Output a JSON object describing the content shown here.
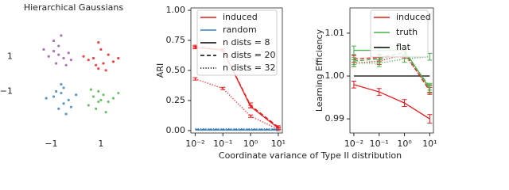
{
  "chart_data": [
    {
      "type": "scatter",
      "title": "Hierarchical Gaussians",
      "xlim": [
        -2.1,
        1.9
      ],
      "ylim": [
        -2.8,
        3.1
      ],
      "xticks": [
        {
          "value": -1,
          "label": "−1"
        },
        1
      ],
      "yticks": [
        1,
        {
          "value": -1,
          "label": "−1"
        }
      ],
      "series": [
        {
          "color": "#984ea3",
          "x": [
            -0.9,
            -0.5,
            -0.7,
            -1.1,
            -0.3,
            -0.8,
            -0.6,
            -1.3,
            -0.4,
            -0.9,
            -0.2,
            -0.7
          ],
          "y": [
            1.3,
            0.9,
            1.6,
            1.0,
            1.2,
            0.6,
            2.2,
            1.4,
            0.5,
            1.9,
            0.8,
            1.1
          ]
        },
        {
          "color": "#e41a1c",
          "x": [
            0.7,
            1.1,
            1.3,
            0.9,
            0.5,
            1.5,
            1.0,
            0.8,
            1.2,
            0.3,
            1.7,
            0.9
          ],
          "y": [
            0.9,
            0.6,
            1.1,
            0.3,
            0.8,
            0.7,
            1.4,
            0.5,
            0.2,
            1.0,
            0.9,
            1.8
          ]
        },
        {
          "color": "#377eb8",
          "x": [
            -0.6,
            -0.3,
            -0.9,
            -0.5,
            -0.2,
            -0.8,
            -0.4,
            -1.2,
            -0.6,
            0.0,
            -0.5,
            -0.7
          ],
          "y": [
            -1.1,
            -1.5,
            -1.3,
            -0.8,
            -1.9,
            -1.0,
            -2.3,
            -1.4,
            -0.6,
            -1.2,
            -1.7,
            -2.0
          ]
        },
        {
          "color": "#4daf4a",
          "x": [
            0.7,
            1.0,
            0.9,
            1.3,
            0.5,
            1.1,
            0.8,
            1.5,
            0.6,
            1.2,
            0.9,
            1.7
          ],
          "y": [
            -1.3,
            -1.5,
            -1.0,
            -1.6,
            -1.8,
            -1.2,
            -2.0,
            -1.4,
            -0.9,
            -2.2,
            -1.6,
            -1.1
          ]
        }
      ]
    },
    {
      "type": "line",
      "ylabel": "ARI",
      "xlabel": "Coordinate variance of Type II distribution",
      "log_x": true,
      "x": [
        0.01,
        0.1,
        1,
        10
      ],
      "xlim": [
        0.007,
        14
      ],
      "ylim": [
        -0.02,
        1.02
      ],
      "xticks": [
        {
          "value": 0.01,
          "label": "10⁻²"
        },
        {
          "value": 0.1,
          "label": "10⁻¹"
        },
        {
          "value": 1,
          "label": "10⁰"
        },
        {
          "value": 10,
          "label": "10¹"
        }
      ],
      "yticks": [
        {
          "value": 0,
          "label": "0.00"
        },
        {
          "value": 0.25,
          "label": "0.25"
        },
        {
          "value": 0.5,
          "label": "0.50"
        },
        {
          "value": 0.75,
          "label": "0.75"
        },
        {
          "value": 1,
          "label": "1.00"
        }
      ],
      "legend": [
        {
          "name": "induced",
          "color": "#e41a1c"
        },
        {
          "name": "random",
          "color": "#377eb8"
        },
        {
          "name": "n dists = 8",
          "dash": "solid"
        },
        {
          "name": "n dists = 20",
          "dash": "dashed"
        },
        {
          "name": "n dists = 32",
          "dash": "dotted"
        }
      ],
      "series": [
        {
          "color": "#e41a1c",
          "dash": "solid",
          "values": [
            0.69,
            0.67,
            0.2,
            0.02
          ],
          "errors": [
            0.01,
            0.01,
            0.01,
            0.01
          ]
        },
        {
          "color": "#e41a1c",
          "dash": "dashed",
          "values": [
            0.7,
            0.67,
            0.21,
            0.03
          ],
          "errors": [
            0.01,
            0.01,
            0.02,
            0.01
          ]
        },
        {
          "color": "#e41a1c",
          "dash": "dotted",
          "values": [
            0.43,
            0.35,
            0.12,
            0.01
          ],
          "errors": [
            0.01,
            0.01,
            0.01,
            0.01
          ]
        },
        {
          "color": "#377eb8",
          "dash": "solid",
          "values": [
            0.005,
            0.005,
            0.005,
            0.005
          ]
        },
        {
          "color": "#377eb8",
          "dash": "dashed",
          "values": [
            0.01,
            0.01,
            0.01,
            0.01
          ]
        },
        {
          "color": "#377eb8",
          "dash": "dotted",
          "values": [
            0.015,
            0.015,
            0.015,
            0.015
          ]
        }
      ]
    },
    {
      "type": "line",
      "ylabel": "Learning Efficiency",
      "log_x": true,
      "x": [
        0.01,
        0.1,
        1,
        10
      ],
      "xlim": [
        0.007,
        14
      ],
      "ylim": [
        0.9867,
        1.0159
      ],
      "xticks": [
        {
          "value": 0.01,
          "label": "10⁻²"
        },
        {
          "value": 0.1,
          "label": "10⁻¹"
        },
        {
          "value": 1,
          "label": "10⁰"
        },
        {
          "value": 10,
          "label": "10¹"
        }
      ],
      "yticks": [
        {
          "value": 0.99,
          "label": "0.99"
        },
        {
          "value": 1,
          "label": "1.00"
        },
        {
          "value": 1.01,
          "label": "1.01"
        }
      ],
      "legend": [
        {
          "name": "induced",
          "color": "#e41a1c"
        },
        {
          "name": "truth",
          "color": "#4daf4a"
        },
        {
          "name": "flat",
          "color": "#000000"
        }
      ],
      "series": [
        {
          "color": "#000000",
          "dash": "solid",
          "values": [
            1,
            1,
            1,
            1
          ]
        },
        {
          "color": "#e41a1c",
          "dash": "solid",
          "values": [
            0.998,
            0.9963,
            0.9937,
            0.99
          ],
          "errors": [
            0.0008,
            0.0008,
            0.0008,
            0.001
          ]
        },
        {
          "color": "#e41a1c",
          "dash": "dashed",
          "values": [
            1.004,
            1.0043,
            1.0055,
            0.9965
          ],
          "errors": [
            0.0008,
            0.0008,
            0.0008,
            0.0008
          ]
        },
        {
          "color": "#e41a1c",
          "dash": "dotted",
          "values": [
            1.003,
            1.0035,
            1.005,
            0.997
          ],
          "errors": [
            0.0008,
            0.0008,
            0.0008,
            0.0008
          ]
        },
        {
          "color": "#4daf4a",
          "dash": "solid",
          "values": [
            1.006,
            1.006,
            1.006,
            0.997
          ],
          "errors": [
            0.001,
            0.001,
            0.001,
            0.001
          ]
        },
        {
          "color": "#4daf4a",
          "dash": "dashed",
          "values": [
            1.0035,
            1.004,
            1.0055,
            0.9975
          ],
          "errors": [
            0.0008,
            0.0008,
            0.0008,
            0.0008
          ]
        },
        {
          "color": "#4daf4a",
          "dash": "dotted",
          "values": [
            1.003,
            1.003,
            1.004,
            1.0045
          ],
          "errors": [
            0.0008,
            0.0008,
            0.0008,
            0.0008
          ]
        }
      ]
    }
  ]
}
